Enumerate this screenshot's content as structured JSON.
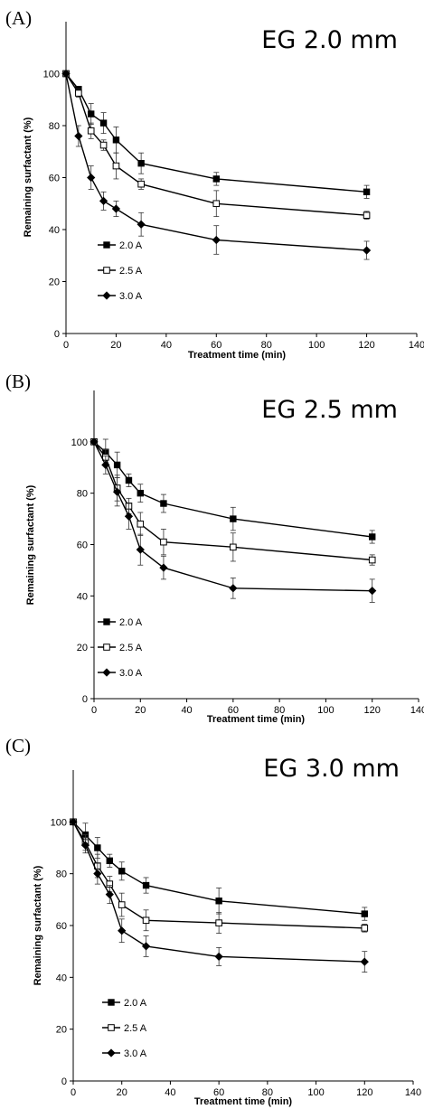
{
  "chart_data": [
    {
      "type": "line",
      "panel_label": "(A)",
      "title": "EG 2.0 mm",
      "xlabel": "Treatment time (min)",
      "ylabel": "Remaining surfactant (%)",
      "xlim": [
        0,
        140
      ],
      "ylim": [
        0,
        120
      ],
      "xticks": [
        "0",
        "20",
        "40",
        "60",
        "80",
        "100",
        "120",
        "140"
      ],
      "yticks": [
        "0",
        "20",
        "40",
        "60",
        "80",
        "100"
      ],
      "grid": false,
      "legend_position": "lower-left",
      "series": [
        {
          "name": "2.0 A",
          "marker": "square-filled",
          "x": [
            0,
            5,
            10,
            15,
            20,
            30,
            60,
            120
          ],
          "y": [
            100,
            94,
            84.5,
            81,
            74.5,
            65.5,
            59.5,
            54.5
          ],
          "err": [
            0,
            1,
            4,
            4,
            5,
            4,
            2.5,
            2.5
          ]
        },
        {
          "name": "2.5 A",
          "marker": "square-open",
          "x": [
            0,
            5,
            10,
            15,
            20,
            30,
            60,
            120
          ],
          "y": [
            100,
            92.5,
            78,
            72.5,
            64.5,
            57.5,
            50,
            45.5
          ],
          "err": [
            0,
            1.5,
            3,
            2,
            5,
            2,
            5,
            1.5
          ]
        },
        {
          "name": "3.0 A",
          "marker": "diamond-filled",
          "x": [
            0,
            5,
            10,
            15,
            20,
            30,
            60,
            120
          ],
          "y": [
            100,
            76,
            60,
            51,
            48,
            42,
            36,
            32
          ],
          "err": [
            0,
            4,
            4.5,
            3.5,
            3,
            4.5,
            5.5,
            3.5
          ]
        }
      ]
    },
    {
      "type": "line",
      "panel_label": "(B)",
      "title": "EG 2.5 mm",
      "xlabel": "Treatment time (min)",
      "ylabel": "Remaining surfactant (%)",
      "xlim": [
        0,
        140
      ],
      "ylim": [
        0,
        120
      ],
      "xticks": [
        "0",
        "20",
        "40",
        "60",
        "80",
        "100",
        "120",
        "140"
      ],
      "yticks": [
        "0",
        "20",
        "40",
        "60",
        "80",
        "100"
      ],
      "grid": false,
      "legend_position": "lower-left",
      "series": [
        {
          "name": "2.0 A",
          "marker": "square-filled",
          "x": [
            0,
            5,
            10,
            15,
            20,
            30,
            60,
            120
          ],
          "y": [
            100,
            96,
            91,
            85,
            80,
            76,
            70,
            63
          ],
          "err": [
            0,
            5,
            5,
            2.5,
            3.5,
            3.5,
            4.5,
            2.5
          ]
        },
        {
          "name": "2.5 A",
          "marker": "square-open",
          "x": [
            0,
            5,
            10,
            15,
            20,
            30,
            60,
            120
          ],
          "y": [
            100,
            94,
            82,
            75,
            68,
            61,
            59,
            54
          ],
          "err": [
            0,
            3,
            5,
            3,
            4.5,
            5,
            5.5,
            2
          ]
        },
        {
          "name": "3.0 A",
          "marker": "diamond-filled",
          "x": [
            0,
            5,
            10,
            15,
            20,
            30,
            60,
            120
          ],
          "y": [
            100,
            91,
            80.5,
            71,
            58,
            51,
            43,
            42
          ],
          "err": [
            0,
            3.5,
            5.5,
            5,
            6,
            4.5,
            4,
            4.5
          ]
        }
      ]
    },
    {
      "type": "line",
      "panel_label": "(C)",
      "title": "EG 3.0 mm",
      "xlabel": "Treatment time (min)",
      "ylabel": "Remaining surfactant (%)",
      "xlim": [
        0,
        140
      ],
      "ylim": [
        0,
        120
      ],
      "xticks": [
        "0",
        "20",
        "40",
        "60",
        "80",
        "100",
        "120",
        "140"
      ],
      "yticks": [
        "0",
        "20",
        "40",
        "60",
        "80",
        "100"
      ],
      "grid": false,
      "legend_position": "lower-left",
      "series": [
        {
          "name": "2.0 A",
          "marker": "square-filled",
          "x": [
            0,
            5,
            10,
            15,
            20,
            30,
            60,
            120
          ],
          "y": [
            100,
            95,
            90,
            85,
            81,
            75.5,
            69.5,
            64.5
          ],
          "err": [
            0,
            4.5,
            4,
            2.5,
            3.5,
            3,
            5,
            2.5
          ]
        },
        {
          "name": "2.5 A",
          "marker": "square-open",
          "x": [
            0,
            5,
            10,
            15,
            20,
            30,
            60,
            120
          ],
          "y": [
            100,
            92,
            83,
            76,
            68,
            62,
            61,
            59
          ],
          "err": [
            0,
            3,
            4.5,
            3,
            4.5,
            4,
            4,
            1.5
          ]
        },
        {
          "name": "3.0 A",
          "marker": "diamond-filled",
          "x": [
            0,
            5,
            10,
            15,
            20,
            30,
            60,
            120
          ],
          "y": [
            100,
            91,
            80,
            72,
            58,
            52,
            48,
            46
          ],
          "err": [
            0,
            3,
            4,
            3.5,
            4.5,
            4,
            3.5,
            4
          ]
        }
      ]
    }
  ]
}
